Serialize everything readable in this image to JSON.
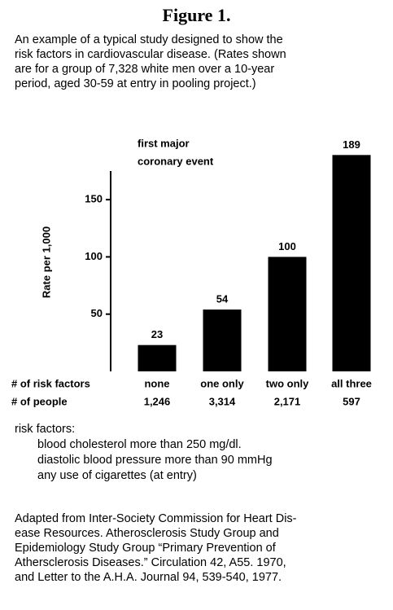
{
  "chart_data": {
    "type": "bar",
    "title": "Figure 1.",
    "caption": [
      "An example of a typical study designed to show the",
      "risk factors in cardiovascular disease. (Rates shown",
      "are for a group of 7,328 white men over a 10-year",
      "period, aged 30-59 at entry in pooling project.)"
    ],
    "annotation": [
      "first major",
      "coronary event"
    ],
    "y_label": "Rate per 1,000",
    "categories_label": "# of risk factors",
    "categories": [
      "none",
      "one only",
      "two only",
      "all three"
    ],
    "values": [
      23,
      54,
      100,
      189
    ],
    "people_label": "# of people",
    "people": [
      "1,246",
      "3,314",
      "2,171",
      "597"
    ],
    "color": "#000000",
    "ylim": [
      0,
      175
    ],
    "yticks": [
      50,
      100,
      150
    ],
    "notes_title": "risk factors:",
    "notes": [
      "blood cholesterol more than 250 mg/dl.",
      "diastolic blood pressure more than 90 mmHg",
      "any use of cigarettes (at entry)"
    ],
    "source": [
      "Adapted from Inter-Society Commission for Heart Dis-",
      "ease Resources. Atherosclerosis Study Group and",
      "Epidemiology Study Group “Primary Prevention of",
      "Athersclerosis Diseases.” Circulation 42, A55. 1970,",
      "and Letter to the A.H.A. Journal 94, 539-540, 1977."
    ]
  }
}
